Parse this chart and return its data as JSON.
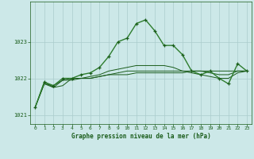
{
  "background_color": "#cce8e8",
  "grid_color": "#aacccc",
  "line_color_dark": "#1a5c1a",
  "line_color_medium": "#2e7d2e",
  "xlabel": "Graphe pression niveau de la mer (hPa)",
  "xlim": [
    -0.5,
    23.5
  ],
  "ylim": [
    1020.75,
    1024.1
  ],
  "yticks": [
    1021,
    1022,
    1023
  ],
  "xticks": [
    0,
    1,
    2,
    3,
    4,
    5,
    6,
    7,
    8,
    9,
    10,
    11,
    12,
    13,
    14,
    15,
    16,
    17,
    18,
    19,
    20,
    21,
    22,
    23
  ],
  "series1": [
    1021.2,
    1021.9,
    1021.8,
    1022.0,
    1022.0,
    1022.1,
    1022.15,
    1022.3,
    1022.6,
    1023.0,
    1023.1,
    1023.5,
    1023.6,
    1023.3,
    1022.9,
    1022.9,
    1022.65,
    1022.2,
    1022.1,
    1022.2,
    1022.0,
    1021.85,
    1022.4,
    1022.2
  ],
  "series2": [
    1021.2,
    1021.9,
    1021.75,
    1021.8,
    1022.0,
    1022.0,
    1022.05,
    1022.1,
    1022.2,
    1022.25,
    1022.3,
    1022.35,
    1022.35,
    1022.35,
    1022.35,
    1022.3,
    1022.2,
    1022.15,
    1022.1,
    1022.05,
    1022.0,
    1022.0,
    1022.15,
    1022.2
  ],
  "series3": [
    1021.2,
    1021.85,
    1021.75,
    1021.95,
    1022.0,
    1022.0,
    1022.0,
    1022.05,
    1022.1,
    1022.15,
    1022.2,
    1022.2,
    1022.2,
    1022.2,
    1022.2,
    1022.2,
    1022.2,
    1022.2,
    1022.2,
    1022.15,
    1022.1,
    1022.1,
    1022.2,
    1022.2
  ],
  "series4": [
    1021.2,
    1021.85,
    1021.8,
    1021.95,
    1021.95,
    1022.0,
    1022.0,
    1022.05,
    1022.1,
    1022.1,
    1022.1,
    1022.15,
    1022.15,
    1022.15,
    1022.15,
    1022.15,
    1022.15,
    1022.2,
    1022.2,
    1022.2,
    1022.2,
    1022.2,
    1022.2,
    1022.2
  ]
}
